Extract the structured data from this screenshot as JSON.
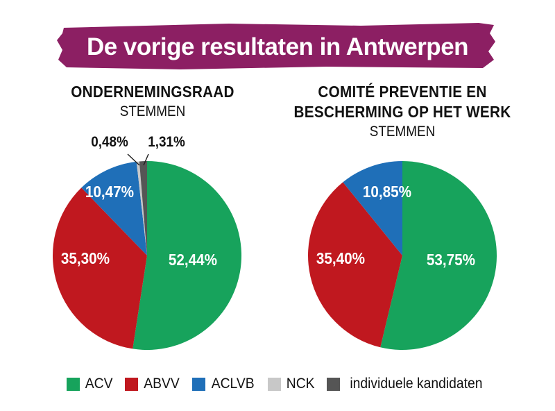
{
  "title": "De vorige resultaten in Antwerpen",
  "colors": {
    "banner": "#8c1f63",
    "ACV": "#17a35c",
    "ABVV": "#c0181f",
    "ACLVB": "#1f6fb8",
    "NCK": "#c8c8c8",
    "individuele kandidaten": "#555555"
  },
  "legend": [
    {
      "label": "ACV",
      "key": "ACV"
    },
    {
      "label": "ABVV",
      "key": "ABVV"
    },
    {
      "label": "ACLVB",
      "key": "ACLVB"
    },
    {
      "label": "NCK",
      "key": "NCK"
    },
    {
      "label": "individuele kandidaten",
      "key": "individuele kandidaten"
    }
  ],
  "chart_data": [
    {
      "type": "pie",
      "title": "ONDERNEMINGSRAAD",
      "subtitle": "STEMMEN",
      "slices": [
        {
          "name": "ACV",
          "value": 52.44,
          "label": "52,44%"
        },
        {
          "name": "ABVV",
          "value": 35.3,
          "label": "35,30%"
        },
        {
          "name": "ACLVB",
          "value": 10.47,
          "label": "10,47%"
        },
        {
          "name": "NCK",
          "value": 0.48,
          "label": "0,48%"
        },
        {
          "name": "individuele kandidaten",
          "value": 1.31,
          "label": "1,31%"
        }
      ]
    },
    {
      "type": "pie",
      "title": "COMITÉ PREVENTIE EN BESCHERMING OP HET WERK",
      "title_lines": [
        "COMITÉ PREVENTIE EN",
        "BESCHERMING OP HET WERK"
      ],
      "subtitle": "STEMMEN",
      "slices": [
        {
          "name": "ACV",
          "value": 53.75,
          "label": "53,75%"
        },
        {
          "name": "ABVV",
          "value": 35.4,
          "label": "35,40%"
        },
        {
          "name": "ACLVB",
          "value": 10.85,
          "label": "10,85%"
        }
      ]
    }
  ]
}
